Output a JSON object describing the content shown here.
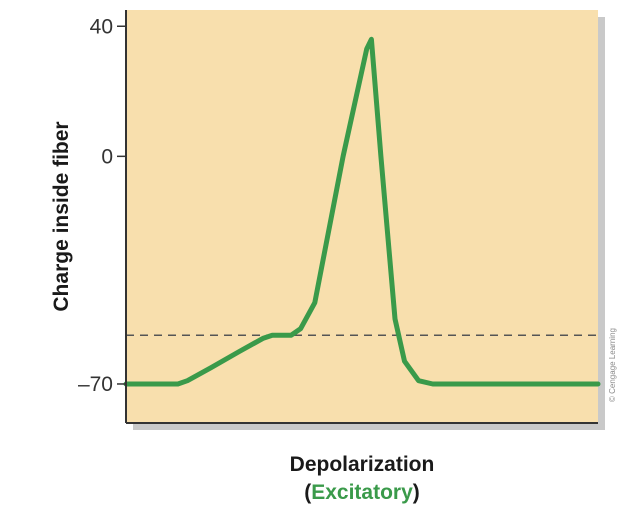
{
  "chart_data": {
    "type": "line",
    "ylabel": "Charge inside fiber",
    "xlabel": "Depolarization",
    "xlabel_sub": {
      "open": "(",
      "word": "Excitatory",
      "close": ")"
    },
    "yticks": [
      {
        "value": 40,
        "label": "40"
      },
      {
        "value": 0,
        "label": "0"
      },
      {
        "value": -70,
        "label": "–70"
      }
    ],
    "ylim": [
      -82,
      45
    ],
    "xlim": [
      0,
      100
    ],
    "grid": false,
    "threshold": -55,
    "series": [
      {
        "values": [
          {
            "x": 0,
            "y": -70
          },
          {
            "x": 11,
            "y": -70
          },
          {
            "x": 13,
            "y": -69
          },
          {
            "x": 18,
            "y": -65
          },
          {
            "x": 24,
            "y": -60
          },
          {
            "x": 29,
            "y": -56
          },
          {
            "x": 31,
            "y": -55
          },
          {
            "x": 35,
            "y": -55
          },
          {
            "x": 37,
            "y": -53
          },
          {
            "x": 40,
            "y": -45
          },
          {
            "x": 46,
            "y": 0
          },
          {
            "x": 51,
            "y": 33
          },
          {
            "x": 52,
            "y": 36
          },
          {
            "x": 54,
            "y": 0
          },
          {
            "x": 57,
            "y": -50
          },
          {
            "x": 59,
            "y": -63
          },
          {
            "x": 62,
            "y": -69
          },
          {
            "x": 65,
            "y": -70
          },
          {
            "x": 100,
            "y": -70
          }
        ],
        "color": "#3a9a4a"
      }
    ],
    "colors": {
      "background": "#f8dfad",
      "shadow": "#c9c9c9",
      "axis": "#333333",
      "threshold": "#555555"
    },
    "credit": "© Cengage Learning"
  }
}
